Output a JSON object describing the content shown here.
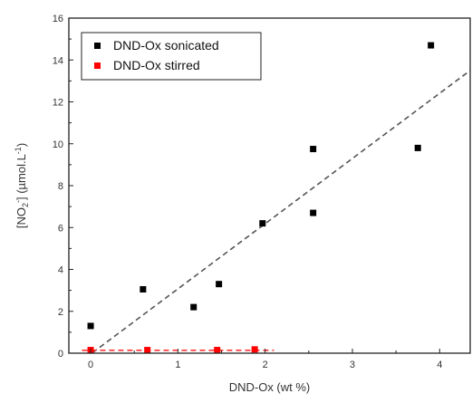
{
  "chart_data": {
    "type": "scatter",
    "title": "",
    "xlabel": "DND-Ox (wt %)",
    "ylabel_parts": [
      "[NO",
      "2",
      "-",
      "] (µmol.L",
      "-1",
      ")"
    ],
    "xlim": [
      -0.25,
      4.35
    ],
    "ylim": [
      0,
      16
    ],
    "xticks": [
      0,
      1,
      2,
      3,
      4
    ],
    "yticks": [
      0,
      2,
      4,
      6,
      8,
      10,
      12,
      14,
      16
    ],
    "grid": false,
    "legend_position": "top-left",
    "series": [
      {
        "name": "DND-Ox sonicated",
        "color": "#000000",
        "marker": "square",
        "x": [
          0.0,
          0.6,
          1.18,
          1.47,
          1.97,
          2.55,
          2.55,
          3.75,
          3.9
        ],
        "y": [
          1.3,
          3.05,
          2.2,
          3.3,
          6.2,
          9.75,
          6.7,
          9.8,
          14.7
        ],
        "fit": {
          "style": "dashed",
          "color": "#555555",
          "x": [
            0.02,
            4.35
          ],
          "y": [
            0.02,
            13.5
          ]
        }
      },
      {
        "name": "DND-Ox stirred",
        "color": "#ff0000",
        "marker": "square",
        "x": [
          0.0,
          0.65,
          1.45,
          1.88
        ],
        "y": [
          0.15,
          0.15,
          0.15,
          0.18
        ],
        "fit": {
          "style": "dashed",
          "color": "#ff3333",
          "x": [
            -0.1,
            2.1
          ],
          "y": [
            0.14,
            0.14
          ]
        }
      }
    ]
  }
}
